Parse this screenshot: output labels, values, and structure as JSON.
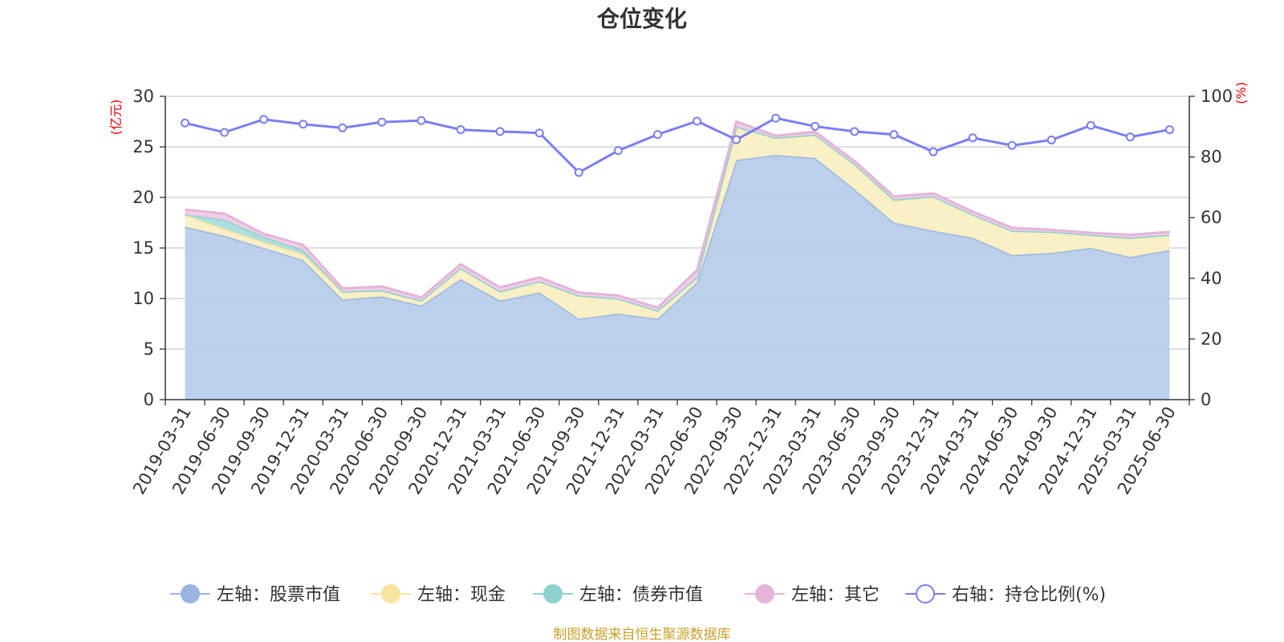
{
  "chart_data": {
    "type": "area",
    "title": "仓位变化",
    "left_axis": {
      "unit": "(亿元)",
      "min": 0,
      "max": 30,
      "ticks": [
        0,
        5,
        10,
        15,
        20,
        25,
        30
      ]
    },
    "right_axis": {
      "unit": "(%)",
      "min": 0,
      "max": 100,
      "ticks": [
        0,
        20,
        40,
        60,
        80,
        100
      ]
    },
    "grid": true,
    "legend_position": "bottom",
    "categories": [
      "2019-03-31",
      "2019-06-30",
      "2019-09-30",
      "2019-12-31",
      "2020-03-31",
      "2020-06-30",
      "2020-09-30",
      "2020-12-31",
      "2021-03-31",
      "2021-06-30",
      "2021-09-30",
      "2021-12-31",
      "2022-03-31",
      "2022-06-30",
      "2022-09-30",
      "2022-12-31",
      "2023-03-31",
      "2023-06-30",
      "2023-09-30",
      "2023-12-31",
      "2024-03-31",
      "2024-06-30",
      "2024-09-30",
      "2024-12-31",
      "2025-03-31",
      "2025-06-30"
    ],
    "stacked_series": [
      {
        "name": "左轴：股票市值",
        "color": "#9ab6e0",
        "fill": "#b8cdeb",
        "values": [
          17.1,
          16.2,
          15.0,
          13.8,
          9.9,
          10.2,
          9.3,
          11.9,
          9.8,
          10.6,
          8.0,
          8.5,
          8.0,
          11.6,
          23.7,
          24.2,
          23.9,
          20.8,
          17.5,
          16.7,
          16.0,
          14.3,
          14.5,
          15.0,
          14.1,
          14.8
        ]
      },
      {
        "name": "左轴：现金",
        "color": "#f7e4a0",
        "fill": "#faefc2",
        "values": [
          1.2,
          0.7,
          0.6,
          0.6,
          0.8,
          0.6,
          0.5,
          1.1,
          0.9,
          1.1,
          2.3,
          1.5,
          0.8,
          0.5,
          3.3,
          1.7,
          2.3,
          2.5,
          2.2,
          3.4,
          2.3,
          2.4,
          2.1,
          1.3,
          1.9,
          1.5
        ]
      },
      {
        "name": "左轴：债券市值",
        "color": "#8fd1ce",
        "fill": "#a9dedb",
        "values": [
          0,
          0.9,
          0.5,
          0.4,
          0,
          0,
          0,
          0,
          0,
          0,
          0,
          0,
          0,
          0,
          0,
          0,
          0,
          0,
          0.1,
          0,
          0,
          0,
          0,
          0,
          0,
          0
        ]
      },
      {
        "name": "左轴：其它",
        "color": "#e3b5d9",
        "fill": "#efcbe6",
        "values": [
          0.5,
          0.6,
          0.3,
          0.5,
          0.3,
          0.4,
          0.3,
          0.4,
          0.4,
          0.4,
          0.3,
          0.3,
          0.3,
          0.7,
          0.5,
          0.2,
          0.3,
          0.3,
          0.3,
          0.3,
          0.3,
          0.3,
          0.2,
          0.2,
          0.3,
          0.3
        ]
      }
    ],
    "line_series": {
      "name": "右轴：持仓比例(%)",
      "color": "#7b7ef0",
      "values": [
        91.2,
        88.1,
        92.4,
        90.8,
        89.6,
        91.5,
        92.0,
        89.0,
        88.4,
        87.9,
        74.9,
        82.1,
        87.4,
        91.8,
        85.7,
        92.8,
        90.1,
        88.4,
        87.4,
        81.7,
        86.3,
        83.8,
        85.6,
        90.4,
        86.6,
        89.0
      ]
    },
    "source": "制图数据来自恒生聚源数据库"
  }
}
